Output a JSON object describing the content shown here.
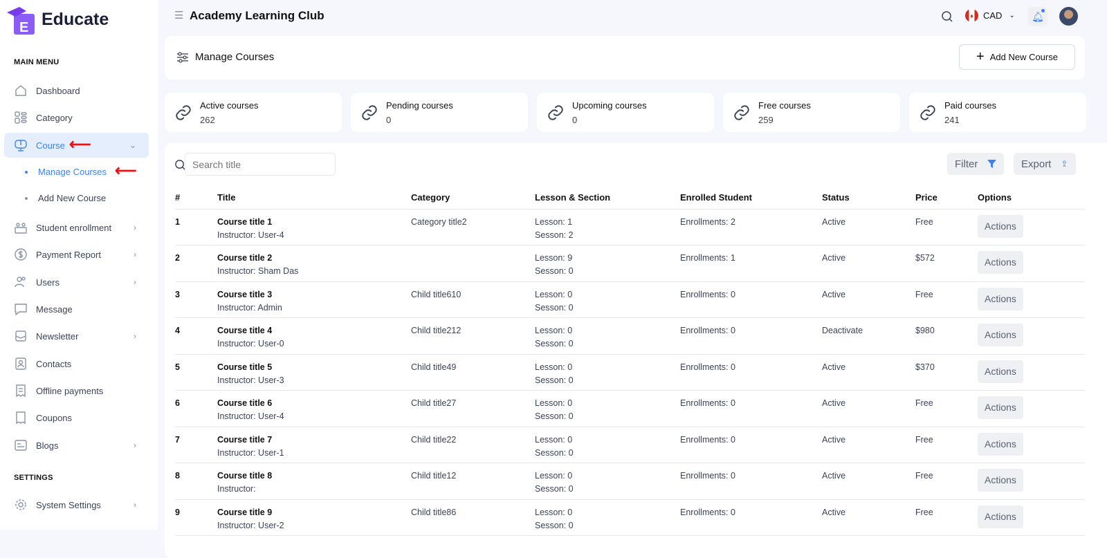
{
  "brand": {
    "name": "Educate",
    "accent": "#3b82f6"
  },
  "sidebar": {
    "main_menu": "MAIN MENU",
    "items": [
      {
        "label": "Dashboard",
        "icon": "home-icon"
      },
      {
        "label": "Category",
        "icon": "grid-icon"
      },
      {
        "label": "Course",
        "icon": "monitor-icon",
        "active": true
      },
      {
        "label": "Student enrollment",
        "icon": "users-board-icon"
      },
      {
        "label": "Payment Report",
        "icon": "dollar-icon"
      },
      {
        "label": "Users",
        "icon": "users-icon"
      },
      {
        "label": "Message",
        "icon": "message-icon"
      },
      {
        "label": "Newsletter",
        "icon": "newsletter-icon"
      },
      {
        "label": "Contacts",
        "icon": "contact-icon"
      },
      {
        "label": "Offline payments",
        "icon": "receipt-icon"
      },
      {
        "label": "Coupons",
        "icon": "coupon-icon"
      },
      {
        "label": "Blogs",
        "icon": "blog-icon"
      }
    ],
    "course_sub": [
      "Manage Courses",
      "Add New Course"
    ],
    "settings": "SETTINGS",
    "system_settings": "System Settings"
  },
  "header": {
    "title": "Academy Learning Club",
    "currency": "CAD"
  },
  "page": {
    "title": "Manage Courses",
    "add_button": "Add New Course"
  },
  "stats": [
    {
      "label": "Active courses",
      "value": "262"
    },
    {
      "label": "Pending courses",
      "value": "0"
    },
    {
      "label": "Upcoming courses",
      "value": "0"
    },
    {
      "label": "Free courses",
      "value": "259"
    },
    {
      "label": "Paid courses",
      "value": "241"
    }
  ],
  "toolbar": {
    "search_placeholder": "Search title",
    "filter": "Filter",
    "export": "Export"
  },
  "table": {
    "headers": [
      "#",
      "Title",
      "Category",
      "Lesson & Section",
      "Enrolled Student",
      "Status",
      "Price",
      "Options"
    ],
    "rows": [
      {
        "n": "1",
        "title": "Course title 1",
        "instructor": "Instructor: User-4",
        "category": "Category title2",
        "lesson": "Lesson: 1",
        "section": "Sesson: 2",
        "enrolled": "Enrollments: 2",
        "status": "Active",
        "price": "Free",
        "action": "Actions"
      },
      {
        "n": "2",
        "title": "Course title 2",
        "instructor": "Instructor: Sham Das",
        "category": "",
        "lesson": "Lesson: 9",
        "section": "Sesson: 0",
        "enrolled": "Enrollments: 1",
        "status": "Active",
        "price": "$572",
        "action": "Actions"
      },
      {
        "n": "3",
        "title": "Course title 3",
        "instructor": "Instructor: Admin",
        "category": "Child title610",
        "lesson": "Lesson: 0",
        "section": "Sesson: 0",
        "enrolled": "Enrollments: 0",
        "status": "Active",
        "price": "Free",
        "action": "Actions"
      },
      {
        "n": "4",
        "title": "Course title 4",
        "instructor": "Instructor: User-0",
        "category": "Child title212",
        "lesson": "Lesson: 0",
        "section": "Sesson: 0",
        "enrolled": "Enrollments: 0",
        "status": "Deactivate",
        "price": "$980",
        "action": "Actions"
      },
      {
        "n": "5",
        "title": "Course title 5",
        "instructor": "Instructor: User-3",
        "category": "Child title49",
        "lesson": "Lesson: 0",
        "section": "Sesson: 0",
        "enrolled": "Enrollments: 0",
        "status": "Active",
        "price": "$370",
        "action": "Actions"
      },
      {
        "n": "6",
        "title": "Course title 6",
        "instructor": "Instructor: User-4",
        "category": "Child title27",
        "lesson": "Lesson: 0",
        "section": "Sesson: 0",
        "enrolled": "Enrollments: 0",
        "status": "Active",
        "price": "Free",
        "action": "Actions"
      },
      {
        "n": "7",
        "title": "Course title 7",
        "instructor": "Instructor: User-1",
        "category": "Child title22",
        "lesson": "Lesson: 0",
        "section": "Sesson: 0",
        "enrolled": "Enrollments: 0",
        "status": "Active",
        "price": "Free",
        "action": "Actions"
      },
      {
        "n": "8",
        "title": "Course title 8",
        "instructor": "Instructor:",
        "category": "Child title12",
        "lesson": "Lesson: 0",
        "section": "Sesson: 0",
        "enrolled": "Enrollments: 0",
        "status": "Active",
        "price": "Free",
        "action": "Actions"
      },
      {
        "n": "9",
        "title": "Course title 9",
        "instructor": "Instructor: User-2",
        "category": "Child title86",
        "lesson": "Lesson: 0",
        "section": "Sesson: 0",
        "enrolled": "Enrollments: 0",
        "status": "Active",
        "price": "Free",
        "action": "Actions"
      }
    ]
  }
}
